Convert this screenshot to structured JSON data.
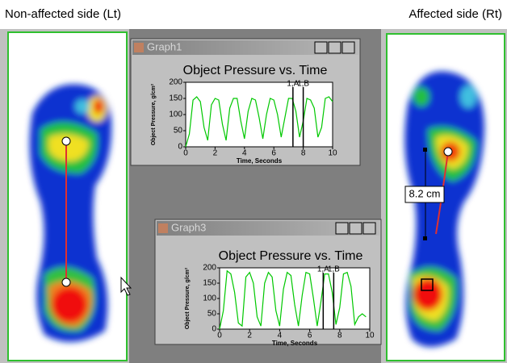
{
  "header": {
    "left": "Non-affected side (Lt)",
    "right": "Affected side (Rt)"
  },
  "windows": [
    {
      "title": "Graph1"
    },
    {
      "title": "Graph3"
    }
  ],
  "measurement": "8.2 cm",
  "chart_data": [
    {
      "type": "line",
      "title": "Object Pressure vs. Time",
      "x_label": "Time, Seconds",
      "y_label": "Object Pressure, g/cm²",
      "xlim": [
        0,
        10
      ],
      "xticks": [
        0,
        2,
        4,
        6,
        8,
        10
      ],
      "ylim": [
        0,
        200
      ],
      "yticks": [
        0,
        50,
        100,
        150,
        200
      ],
      "color": "#00c800",
      "x": [
        0,
        0.25,
        0.5,
        0.75,
        1,
        1.25,
        1.5,
        1.75,
        2,
        2.25,
        2.5,
        2.75,
        3,
        3.25,
        3.5,
        3.75,
        4,
        4.25,
        4.5,
        4.75,
        5,
        5.25,
        5.5,
        5.75,
        6,
        6.25,
        6.5,
        6.75,
        7,
        7.25,
        7.5,
        7.75,
        8,
        8.25,
        8.5,
        8.75,
        9,
        9.25,
        9.5,
        9.75,
        10
      ],
      "values": [
        0,
        40,
        145,
        155,
        140,
        60,
        20,
        130,
        150,
        145,
        70,
        20,
        120,
        150,
        150,
        80,
        25,
        110,
        150,
        145,
        90,
        25,
        100,
        150,
        145,
        100,
        30,
        90,
        150,
        150,
        110,
        30,
        80,
        150,
        145,
        120,
        30,
        60,
        150,
        155,
        140
      ],
      "markers": [
        {
          "label": "1,A",
          "x": 7.3
        },
        {
          "label": "1,B",
          "x": 8.0
        }
      ]
    },
    {
      "type": "line",
      "title": "Object Pressure vs. Time",
      "x_label": "Time, Seconds",
      "y_label": "Object Pressure, g/cm²",
      "xlim": [
        0,
        10
      ],
      "xticks": [
        0,
        2,
        4,
        6,
        8,
        10
      ],
      "ylim": [
        0,
        200
      ],
      "yticks": [
        0,
        50,
        100,
        150,
        200
      ],
      "color": "#00c800",
      "x": [
        0,
        0.25,
        0.5,
        0.75,
        1,
        1.25,
        1.5,
        1.75,
        2,
        2.25,
        2.5,
        2.75,
        3,
        3.25,
        3.5,
        3.75,
        4,
        4.25,
        4.5,
        4.75,
        5,
        5.25,
        5.5,
        5.75,
        6,
        6.25,
        6.5,
        6.75,
        7,
        7.25,
        7.5,
        7.75,
        8,
        8.25,
        8.5,
        8.75,
        9,
        9.25,
        9.5,
        9.75
      ],
      "values": [
        0,
        60,
        190,
        180,
        120,
        20,
        10,
        170,
        185,
        150,
        40,
        10,
        150,
        185,
        170,
        60,
        10,
        130,
        185,
        175,
        80,
        10,
        110,
        185,
        180,
        100,
        10,
        90,
        180,
        180,
        120,
        15,
        70,
        180,
        185,
        140,
        15,
        40,
        50,
        40
      ],
      "markers": [
        {
          "label": "1,A",
          "x": 6.9
        },
        {
          "label": "1,B",
          "x": 7.6
        }
      ]
    }
  ]
}
